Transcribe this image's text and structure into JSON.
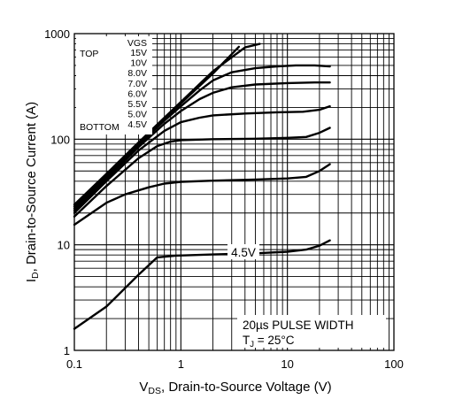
{
  "chart_data": {
    "type": "line",
    "x_scale": "log",
    "y_scale": "log",
    "xlim": [
      0.1,
      100
    ],
    "ylim": [
      1,
      1000
    ],
    "grid": true,
    "x_ticks": [
      {
        "value": 0.1,
        "label": "0.1"
      },
      {
        "value": 1,
        "label": "1"
      },
      {
        "value": 10,
        "label": "10"
      },
      {
        "value": 100,
        "label": "100"
      }
    ],
    "y_ticks": [
      {
        "value": 1,
        "label": "1"
      },
      {
        "value": 10,
        "label": "10"
      },
      {
        "value": 100,
        "label": "100"
      },
      {
        "value": 1000,
        "label": "1000"
      }
    ],
    "xlabel": {
      "main": "V",
      "sub": "DS",
      "rest": ", Drain-to-Source Voltage (V)"
    },
    "ylabel": {
      "main": "I",
      "sub": "D",
      "rest": ",  Drain-to-Source Current (A)"
    },
    "legend": {
      "header": "VGS",
      "top_label": "TOP",
      "bottom_label": "BOTTOM",
      "entries": [
        "15V",
        "10V",
        "8.0V",
        "7.0V",
        "6.0V",
        "5.5V",
        "5.0V",
        "4.5V"
      ]
    },
    "curve_label": "4.5V",
    "annotations": {
      "pulse": "20µs PULSE WIDTH",
      "tj_main": "T",
      "tj_sub": "J",
      "tj_rest": " = 25°C"
    },
    "series": [
      {
        "name": "15V",
        "points": [
          [
            0.1,
            24
          ],
          [
            0.2,
            47
          ],
          [
            0.4,
            93
          ],
          [
            0.7,
            160
          ],
          [
            1,
            225
          ],
          [
            2,
            440
          ],
          [
            4,
            740
          ],
          [
            5.5,
            800
          ]
        ]
      },
      {
        "name": "10V",
        "points": [
          [
            0.1,
            23
          ],
          [
            0.2,
            46
          ],
          [
            0.4,
            91
          ],
          [
            0.7,
            156
          ],
          [
            1,
            218
          ],
          [
            2,
            420
          ],
          [
            3.5,
            750
          ]
        ]
      },
      {
        "name": "8.0V",
        "points": [
          [
            0.1,
            22
          ],
          [
            0.2,
            44
          ],
          [
            0.4,
            88
          ],
          [
            0.7,
            150
          ],
          [
            1,
            205
          ],
          [
            1.5,
            290
          ],
          [
            2,
            360
          ],
          [
            3,
            430
          ],
          [
            5,
            470
          ],
          [
            8,
            490
          ],
          [
            12,
            500
          ],
          [
            18,
            500
          ],
          [
            25,
            490
          ]
        ]
      },
      {
        "name": "7.0V",
        "points": [
          [
            0.1,
            21
          ],
          [
            0.2,
            42
          ],
          [
            0.4,
            84
          ],
          [
            0.7,
            140
          ],
          [
            1,
            185
          ],
          [
            1.5,
            240
          ],
          [
            2,
            275
          ],
          [
            3,
            310
          ],
          [
            5,
            330
          ],
          [
            10,
            340
          ],
          [
            18,
            345
          ],
          [
            25,
            345
          ]
        ]
      },
      {
        "name": "6.0V",
        "points": [
          [
            0.1,
            20
          ],
          [
            0.2,
            40
          ],
          [
            0.4,
            78
          ],
          [
            0.7,
            120
          ],
          [
            1,
            145
          ],
          [
            1.5,
            160
          ],
          [
            2,
            168
          ],
          [
            4,
            175
          ],
          [
            8,
            180
          ],
          [
            14,
            182
          ],
          [
            20,
            190
          ],
          [
            25,
            205
          ]
        ]
      },
      {
        "name": "5.5V",
        "points": [
          [
            0.1,
            18.5
          ],
          [
            0.2,
            36
          ],
          [
            0.4,
            66
          ],
          [
            0.6,
            86
          ],
          [
            0.8,
            95
          ],
          [
            1,
            98
          ],
          [
            2,
            100
          ],
          [
            5,
            101
          ],
          [
            10,
            103
          ],
          [
            15,
            105
          ],
          [
            20,
            115
          ],
          [
            25,
            128
          ]
        ]
      },
      {
        "name": "5.0V",
        "points": [
          [
            0.1,
            15.5
          ],
          [
            0.2,
            25
          ],
          [
            0.3,
            30
          ],
          [
            0.5,
            35
          ],
          [
            0.7,
            38
          ],
          [
            1,
            39.5
          ],
          [
            2,
            40.5
          ],
          [
            5,
            41.5
          ],
          [
            10,
            42.5
          ],
          [
            15,
            44
          ],
          [
            20,
            50
          ],
          [
            25,
            58
          ]
        ]
      },
      {
        "name": "4.5V",
        "points": [
          [
            0.1,
            1.6
          ],
          [
            0.2,
            2.6
          ],
          [
            0.4,
            5.2
          ],
          [
            0.6,
            7.6
          ],
          [
            0.9,
            7.9
          ],
          [
            2,
            8.1
          ],
          [
            5,
            8.3
          ],
          [
            10,
            8.6
          ],
          [
            15,
            9
          ],
          [
            20,
            9.8
          ],
          [
            25,
            11
          ]
        ]
      }
    ]
  }
}
